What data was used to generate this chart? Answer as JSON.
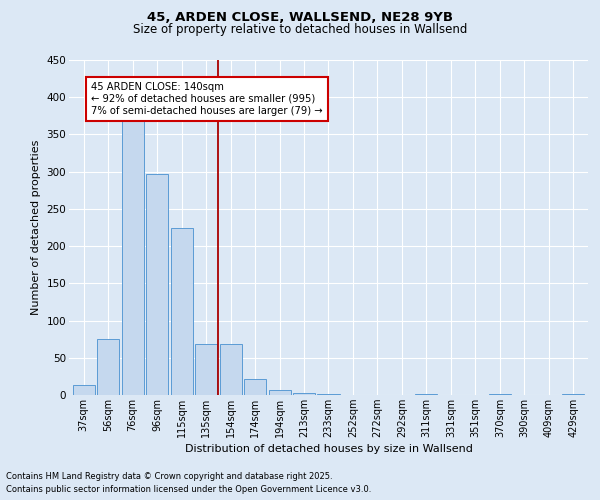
{
  "title_line1": "45, ARDEN CLOSE, WALLSEND, NE28 9YB",
  "title_line2": "Size of property relative to detached houses in Wallsend",
  "xlabel": "Distribution of detached houses by size in Wallsend",
  "ylabel": "Number of detached properties",
  "categories": [
    "37sqm",
    "56sqm",
    "76sqm",
    "96sqm",
    "115sqm",
    "135sqm",
    "154sqm",
    "174sqm",
    "194sqm",
    "213sqm",
    "233sqm",
    "252sqm",
    "272sqm",
    "292sqm",
    "311sqm",
    "331sqm",
    "351sqm",
    "370sqm",
    "390sqm",
    "409sqm",
    "429sqm"
  ],
  "values": [
    13,
    75,
    375,
    297,
    225,
    68,
    68,
    22,
    7,
    3,
    1,
    0,
    0,
    0,
    2,
    0,
    0,
    2,
    0,
    0,
    2
  ],
  "bar_color": "#c5d8ee",
  "bar_edge_color": "#5b9bd5",
  "background_color": "#dce8f5",
  "grid_color": "#ffffff",
  "vline_x": 5.5,
  "vline_color": "#aa0000",
  "annotation_text": "45 ARDEN CLOSE: 140sqm\n← 92% of detached houses are smaller (995)\n7% of semi-detached houses are larger (79) →",
  "annotation_box_facecolor": "#ffffff",
  "annotation_box_edgecolor": "#cc0000",
  "ylim": [
    0,
    450
  ],
  "yticks": [
    0,
    50,
    100,
    150,
    200,
    250,
    300,
    350,
    400,
    450
  ],
  "footnote1": "Contains HM Land Registry data © Crown copyright and database right 2025.",
  "footnote2": "Contains public sector information licensed under the Open Government Licence v3.0."
}
